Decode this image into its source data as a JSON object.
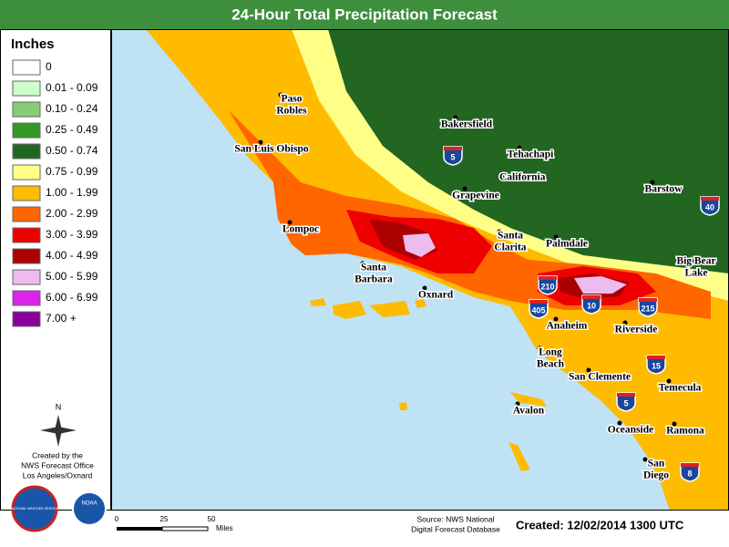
{
  "header": {
    "title": "24-Hour Total Precipitation Forecast"
  },
  "legend": {
    "title": "Inches",
    "items": [
      {
        "label": "0",
        "color": "#ffffff"
      },
      {
        "label": "0.01 - 0.09",
        "color": "#ccffcc"
      },
      {
        "label": "0.10 - 0.24",
        "color": "#88cc77"
      },
      {
        "label": "0.25 - 0.49",
        "color": "#339922"
      },
      {
        "label": "0.50 - 0.74",
        "color": "#226622"
      },
      {
        "label": "0.75 - 0.99",
        "color": "#ffff88"
      },
      {
        "label": "1.00 - 1.99",
        "color": "#ffbb00"
      },
      {
        "label": "2.00 - 2.99",
        "color": "#ff6600"
      },
      {
        "label": "3.00 - 3.99",
        "color": "#ee0000"
      },
      {
        "label": "4.00 - 4.99",
        "color": "#aa0000"
      },
      {
        "label": "5.00 - 5.99",
        "color": "#eebbee"
      },
      {
        "label": "6.00 - 6.99",
        "color": "#dd22ee"
      },
      {
        "label": "7.00 +",
        "color": "#880099"
      }
    ]
  },
  "map": {
    "state": "California",
    "cities": [
      [
        "Paso",
        "Robles"
      ],
      [
        "San Luis Obispo"
      ],
      [
        "Bakersfield"
      ],
      [
        "Tehachapi"
      ],
      [
        "Barstow"
      ],
      [
        "Grapevine"
      ],
      [
        "Lompoc"
      ],
      [
        "Santa",
        "Clarita"
      ],
      [
        "Palmdale"
      ],
      [
        "Big Bear",
        "Lake"
      ],
      [
        "Santa",
        "Barbara"
      ],
      [
        "Oxnard"
      ],
      [
        "Anaheim"
      ],
      [
        "Riverside"
      ],
      [
        "Long",
        "Beach"
      ],
      [
        "San Clemente"
      ],
      [
        "Temecula"
      ],
      [
        "Avalon"
      ],
      [
        "Oceanside"
      ],
      [
        "Ramona"
      ],
      [
        "San",
        "Diego"
      ]
    ],
    "interstates": [
      "5",
      "40",
      "210",
      "10",
      "215",
      "405",
      "15",
      "5",
      "8"
    ]
  },
  "compass": "N",
  "credits": [
    "Created by the",
    "NWS Forecast Office",
    "Los Angeles/Oxnard"
  ],
  "logos": [
    "NATIONAL WEATHER SERVICE",
    "NOAA"
  ],
  "scale": {
    "ticks": [
      "0",
      "25",
      "50"
    ],
    "unit": "Miles"
  },
  "source": [
    "Source: NWS National",
    "Digital Forecast Database"
  ],
  "created": "Created: 12/02/2014 1300 UTC"
}
